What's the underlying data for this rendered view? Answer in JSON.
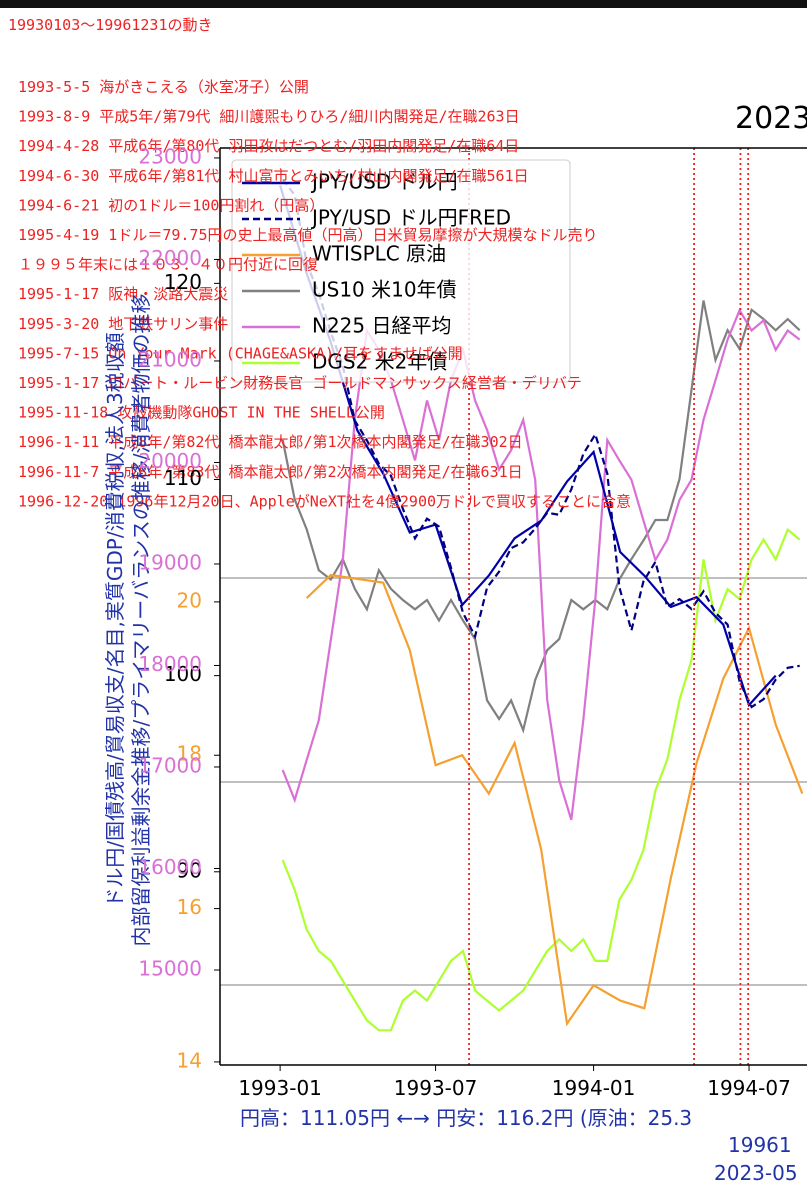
{
  "chart_data": {
    "type": "line",
    "title": "2023",
    "subtitle": "19930103〜19961231の動き",
    "annotations": [
      "1993-5-5 海がきこえる（氷室冴子）公開",
      "1993-8-9 平成5年/第79代 細川護煕もりひろ/細川内閣発足/在職263日",
      "1994-4-28 平成6年/第80代 羽田孜はだつとむ/羽田内閣発足/在職64日",
      "1994-6-30 平成6年/第81代 村山富市とみいち/村山内閣発足/在職561日",
      "1994-6-21 初の1ドル＝100円割れ（円高）",
      "1995-4-19 1ドル＝79.75円の史上最高値（円高）日米貿易摩擦が大規模なドル売り",
      "１９９５年末には１０３．４０円付近に回復",
      "1995-1-17 阪神・淡路大震災",
      "1995-3-20 地下鉄サリン事件",
      "1995-7-15 On Your Mark (CHAGE&ASKA)/耳をすませば公開",
      "1995-1-17 ロバート・ルービン財務長官 ゴールドマンサックス経営者・デリバテ",
      "1995-11-18 攻殻機動隊GHOST IN THE SHELL公開",
      "1996-1-11 平成8年/第82代 橋本龍太郎/第1次橋本内閣発足/在職302日",
      "1996-11-7 平成8年/第83代 橋本龍太郎/第2次橋本内閣発足/在職631日",
      "1996-12-20 1996年12月20日、AppleがNeXT社を4億2900万ドルで買収することに合意"
    ],
    "event_lines": [
      "1993-08-09",
      "1994-04-28",
      "1994-06-21",
      "1994-06-30"
    ],
    "event_line_color": "#ee2222",
    "y_label": [
      "ドル円/国債残高/貿易収支/名目,実質GDP/消費税収,法人3税収額",
      "内部留保利益剰余金推移/プライマリーバランスの推移/消費者物価の推移"
    ],
    "footer": [
      "円高：111.05円 ←→ 円安：116.2円 (原油：25.3",
      "19961",
      "2023-05"
    ],
    "xlim": [
      "1992-10-23",
      "1994-09-03"
    ],
    "xticks": [
      "1993-01",
      "1993-07",
      "1994-01",
      "1994-07"
    ],
    "ylim": [
      80.15,
      126.9
    ],
    "yticks": [
      90,
      100,
      110,
      120
    ],
    "ytick_color": "#000000",
    "y2lim": [
      13.96,
      25.92
    ],
    "y2ticks": [
      14,
      16,
      18,
      20
    ],
    "y2tick_color": "#f5a030",
    "y3lim": [
      14064,
      23098
    ],
    "y3ticks": [
      15000,
      16000,
      17000,
      18000,
      19000,
      20000,
      21000,
      22000,
      23000
    ],
    "y3tick_color": "#da70d6",
    "y4lim": [
      3.45,
      8.38
    ],
    "y5lim": [
      3.06,
      8.61
    ],
    "series": [
      {
        "name": "JPY/USD ドル円",
        "color": "#0000aa",
        "dash": false,
        "axis": "y",
        "x": [
          "1993-01",
          "1993-02",
          "1993-03",
          "1993-04",
          "1993-05",
          "1993-06",
          "1993-07",
          "1993-08",
          "1993-09",
          "1993-10",
          "1993-11",
          "1993-12",
          "1994-01",
          "1994-02",
          "1994-03",
          "1994-04",
          "1994-05",
          "1994-06",
          "1994-07",
          "1994-08"
        ],
        "values": [
          125,
          120.5,
          117,
          112.5,
          110.3,
          107.3,
          107.7,
          103.6,
          105.1,
          107,
          107.9,
          109.9,
          111.4,
          106.3,
          105.1,
          103.5,
          104,
          102.6,
          98.5,
          100
        ]
      },
      {
        "name": "JPY/USD ドル円FRED",
        "color": "#000080",
        "dash": true,
        "axis": "y",
        "x": [
          "1993-01-04",
          "1993-01-18",
          "1993-02-01",
          "1993-02-15",
          "1993-03-01",
          "1993-03-15",
          "1993-03-29",
          "1993-04-12",
          "1993-04-26",
          "1993-05-10",
          "1993-05-24",
          "1993-06-07",
          "1993-06-21",
          "1993-07-05",
          "1993-07-19",
          "1993-08-02",
          "1993-08-16",
          "1993-08-30",
          "1993-09-13",
          "1993-09-27",
          "1993-10-11",
          "1993-10-25",
          "1993-11-08",
          "1993-11-22",
          "1993-12-06",
          "1993-12-20",
          "1994-01-03",
          "1994-01-17",
          "1994-01-31",
          "1994-02-14",
          "1994-02-28",
          "1994-03-14",
          "1994-03-28",
          "1994-04-11",
          "1994-04-25",
          "1994-05-09",
          "1994-05-23",
          "1994-06-06",
          "1994-06-20",
          "1994-07-04",
          "1994-07-18",
          "1994-08-01",
          "1994-08-15",
          "1994-08-29"
        ],
        "values": [
          125.3,
          124.5,
          121,
          119.5,
          117.5,
          115.8,
          113,
          112,
          110.8,
          110.2,
          108.5,
          107,
          108,
          107.6,
          105.5,
          103.2,
          102,
          104.5,
          105.3,
          106.5,
          106.8,
          107.5,
          108.3,
          108.2,
          109.5,
          111.3,
          112.3,
          110.3,
          104.5,
          102.3,
          104.8,
          105.8,
          103.5,
          103.9,
          103.4,
          104.3,
          103.2,
          102.6,
          99.7,
          98.4,
          98.8,
          99.8,
          100.4,
          100.5
        ]
      },
      {
        "name": "WTISPLC 原油",
        "color": "#f5a030",
        "dash": false,
        "axis": "y2",
        "x": [
          "1993-02",
          "1993-03",
          "1993-04",
          "1993-05",
          "1993-06",
          "1993-07",
          "1993-08",
          "1993-09",
          "1993-10",
          "1993-11",
          "1993-12",
          "1994-01",
          "1994-02",
          "1994-03",
          "1994-04",
          "1994-05",
          "1994-06",
          "1994-07",
          "1994-08",
          "1994-09"
        ],
        "values": [
          20.05,
          20.35,
          20.3,
          20.25,
          19.37,
          17.87,
          18.0,
          17.5,
          18.16,
          16.77,
          14.5,
          15.0,
          14.8,
          14.7,
          16.4,
          17.9,
          19.0,
          19.66,
          18.4,
          17.5
        ]
      },
      {
        "name": "US10 米10年債",
        "color": "#808080",
        "dash": false,
        "axis": "y4",
        "x": [
          "1993-01-04",
          "1993-01-18",
          "1993-02-01",
          "1993-02-15",
          "1993-03-01",
          "1993-03-15",
          "1993-03-29",
          "1993-04-12",
          "1993-04-26",
          "1993-05-10",
          "1993-05-24",
          "1993-06-07",
          "1993-06-21",
          "1993-07-05",
          "1993-07-19",
          "1993-08-02",
          "1993-08-16",
          "1993-08-30",
          "1993-09-13",
          "1993-09-27",
          "1993-10-11",
          "1993-10-25",
          "1993-11-08",
          "1993-11-22",
          "1993-12-06",
          "1993-12-20",
          "1994-01-03",
          "1994-01-17",
          "1994-01-31",
          "1994-02-14",
          "1994-02-28",
          "1994-03-14",
          "1994-03-28",
          "1994-04-11",
          "1994-04-25",
          "1994-05-09",
          "1994-05-23",
          "1994-06-06",
          "1994-06-20",
          "1994-07-04",
          "1994-07-18",
          "1994-08-01",
          "1994-08-15",
          "1994-08-29"
        ],
        "values": [
          6.81,
          6.49,
          6.33,
          6.11,
          6.06,
          6.17,
          6.01,
          5.9,
          6.11,
          6.01,
          5.95,
          5.9,
          5.95,
          5.84,
          5.95,
          5.84,
          5.74,
          5.41,
          5.31,
          5.41,
          5.25,
          5.52,
          5.68,
          5.74,
          5.95,
          5.9,
          5.95,
          5.9,
          6.06,
          6.17,
          6.27,
          6.38,
          6.38,
          6.6,
          7.08,
          7.56,
          7.24,
          7.4,
          7.3,
          7.51,
          7.46,
          7.4,
          7.46,
          7.4
        ]
      },
      {
        "name": "N225 日経平均",
        "color": "#da70d6",
        "dash": false,
        "axis": "y3",
        "x": [
          "1993-01-04",
          "1993-01-18",
          "1993-02-01",
          "1993-02-15",
          "1993-03-01",
          "1993-03-15",
          "1993-03-29",
          "1993-04-12",
          "1993-04-26",
          "1993-05-10",
          "1993-05-24",
          "1993-06-07",
          "1993-06-21",
          "1993-07-05",
          "1993-07-19",
          "1993-08-02",
          "1993-08-16",
          "1993-08-30",
          "1993-09-13",
          "1993-09-27",
          "1993-10-11",
          "1993-10-25",
          "1993-11-08",
          "1993-11-22",
          "1993-12-06",
          "1993-12-20",
          "1994-01-03",
          "1994-01-17",
          "1994-01-31",
          "1994-02-14",
          "1994-02-28",
          "1994-03-14",
          "1994-03-28",
          "1994-04-11",
          "1994-04-25",
          "1994-05-09",
          "1994-05-23",
          "1994-06-06",
          "1994-06-20",
          "1994-07-04",
          "1994-07-18",
          "1994-08-01",
          "1994-08-15",
          "1994-08-29"
        ],
        "values": [
          16970,
          16675,
          17070,
          17460,
          18250,
          19040,
          20420,
          21300,
          21110,
          20810,
          20420,
          20020,
          20610,
          20220,
          20810,
          21110,
          20610,
          20320,
          19930,
          20120,
          20420,
          19830,
          17660,
          16870,
          16480,
          17460,
          18650,
          20220,
          20020,
          19830,
          19430,
          19040,
          19240,
          19630,
          19830,
          20420,
          20810,
          21210,
          21500,
          21300,
          21400,
          21110,
          21300,
          21210
        ]
      },
      {
        "name": "DGS2 米2年債",
        "color": "#adff2f",
        "dash": false,
        "axis": "y5",
        "x": [
          "1993-01-04",
          "1993-01-18",
          "1993-02-01",
          "1993-02-15",
          "1993-03-01",
          "1993-03-15",
          "1993-03-29",
          "1993-04-12",
          "1993-04-26",
          "1993-05-10",
          "1993-05-24",
          "1993-06-07",
          "1993-06-21",
          "1993-07-05",
          "1993-07-19",
          "1993-08-02",
          "1993-08-16",
          "1993-08-30",
          "1993-09-13",
          "1993-09-27",
          "1993-10-11",
          "1993-10-25",
          "1993-11-08",
          "1993-11-22",
          "1993-12-06",
          "1993-12-20",
          "1994-01-03",
          "1994-01-17",
          "1994-01-31",
          "1994-02-14",
          "1994-02-28",
          "1994-03-14",
          "1994-03-28",
          "1994-04-11",
          "1994-04-25",
          "1994-05-09",
          "1994-05-23",
          "1994-06-06",
          "1994-06-20",
          "1994-07-04",
          "1994-07-18",
          "1994-08-01",
          "1994-08-15",
          "1994-08-29"
        ],
        "values": [
          4.3,
          4.12,
          3.88,
          3.75,
          3.69,
          3.57,
          3.45,
          3.33,
          3.27,
          3.27,
          3.45,
          3.51,
          3.45,
          3.57,
          3.69,
          3.75,
          3.51,
          3.45,
          3.39,
          3.45,
          3.51,
          3.63,
          3.75,
          3.82,
          3.75,
          3.82,
          3.69,
          3.69,
          4.06,
          4.18,
          4.36,
          4.72,
          4.91,
          5.27,
          5.51,
          6.12,
          5.75,
          5.94,
          5.88,
          6.12,
          6.24,
          6.12,
          6.3,
          6.24
        ]
      }
    ]
  }
}
